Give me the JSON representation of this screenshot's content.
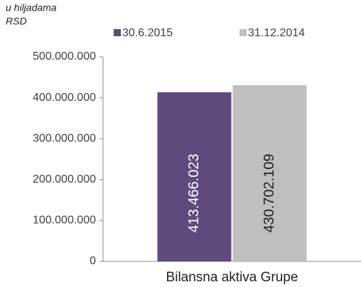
{
  "chart_data": {
    "type": "bar",
    "unit_note": [
      "u hiljadama",
      "RSD"
    ],
    "categories": [
      "Bilansna aktiva Grupe"
    ],
    "series": [
      {
        "name": "30.6.2015",
        "color": "#5e4a7d",
        "values": [
          413466023
        ],
        "value_labels": [
          "413.466.023"
        ],
        "label_color": "#ffffff"
      },
      {
        "name": "31.12.2014",
        "color": "#bfbfbf",
        "values": [
          430702109
        ],
        "value_labels": [
          "430.702.109"
        ],
        "label_color": "#222222"
      }
    ],
    "ylim": [
      0,
      500000000
    ],
    "yticks": [
      0,
      {
        "value": 100000000,
        "label": "100.000.000"
      },
      {
        "value": 200000000,
        "label": "200.000.000"
      },
      {
        "value": 300000000,
        "label": "300.000.000"
      },
      {
        "value": 400000000,
        "label": "400.000.000"
      },
      {
        "value": 500000000,
        "label": "500.000.000"
      }
    ],
    "legend": "top"
  }
}
